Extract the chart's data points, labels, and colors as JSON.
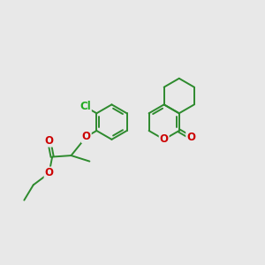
{
  "bg_color": "#e8e8e8",
  "bond_color": "#2d8a2d",
  "oxygen_color": "#cc0000",
  "chlorine_color": "#22aa22",
  "bond_width": 1.4,
  "font_size_atom": 8.5,
  "fig_size": [
    3.0,
    3.0
  ],
  "dpi": 100,
  "xlim": [
    0,
    10
  ],
  "ylim": [
    0,
    10
  ]
}
